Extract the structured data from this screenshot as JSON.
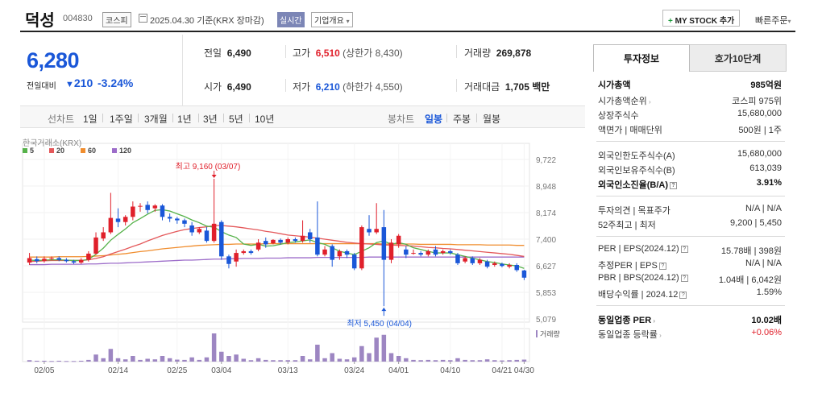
{
  "header": {
    "company": "덕성",
    "code": "004830",
    "market": "코스피",
    "date_info": "2025.04.30 기준(KRX 장마감)",
    "realtime": "실시간",
    "company_overview": "기업개요",
    "my_stock": "MY STOCK 추가",
    "my_stock_plus": "+",
    "quick_order": "빠른주문",
    "quick_order_arrow": "▾",
    "overview_arrow": "▾"
  },
  "price": {
    "current": "6,280",
    "prev_label": "전일대비",
    "change": "210",
    "change_pct": "-3.24%",
    "down_arrow": "▼"
  },
  "quote": {
    "prev_close_label": "전일",
    "prev_close": "6,490",
    "high_label": "고가",
    "high": "6,510",
    "upper_limit": "(상한가 8,430)",
    "volume_label": "거래량",
    "volume": "269,878",
    "open_label": "시가",
    "open": "6,490",
    "low_label": "저가",
    "low": "6,210",
    "lower_limit": "(하한가 4,550)",
    "amount_label": "거래대금",
    "amount": "1,705",
    "amount_unit": "백만"
  },
  "toolbar": {
    "line_label": "선차트",
    "line_periods": [
      "1일",
      "1주일",
      "3개월",
      "1년",
      "3년",
      "5년",
      "10년"
    ],
    "candle_label": "봉차트",
    "candle_periods": [
      "일봉",
      "주봉",
      "월봉"
    ],
    "active_candle": "일봉"
  },
  "chart_data": {
    "type": "candlestick",
    "source": "한국거래소(KRX)",
    "legend": [
      {
        "name": "5",
        "color": "#56b24a"
      },
      {
        "name": "20",
        "color": "#e4585a"
      },
      {
        "name": "60",
        "color": "#f08d2e"
      },
      {
        "name": "120",
        "color": "#9c6cc9"
      }
    ],
    "y_ticks": [
      "9,722",
      "8,948",
      "8,174",
      "7,400",
      "6,627",
      "5,853",
      "5,079"
    ],
    "ylim": [
      5079,
      9722
    ],
    "x_ticks": [
      "02/05",
      "02/14",
      "02/25",
      "03/04",
      "03/13",
      "03/24",
      "04/01",
      "04/10",
      "04/21",
      "04/30"
    ],
    "volume_label": "거래량",
    "annotation_high": "최고 9,160 (03/07)",
    "annotation_low": "최저 5,450 (04/04)",
    "candles": [
      {
        "o": 6720,
        "c": 6850,
        "h": 7000,
        "l": 6650
      },
      {
        "o": 6820,
        "c": 6760,
        "h": 6900,
        "l": 6700
      },
      {
        "o": 6770,
        "c": 6830,
        "h": 6900,
        "l": 6720
      },
      {
        "o": 6830,
        "c": 6850,
        "h": 6900,
        "l": 6790
      },
      {
        "o": 6850,
        "c": 6800,
        "h": 6900,
        "l": 6760
      },
      {
        "o": 6800,
        "c": 6760,
        "h": 6850,
        "l": 6720
      },
      {
        "o": 6760,
        "c": 6720,
        "h": 6800,
        "l": 6680
      },
      {
        "o": 6720,
        "c": 6800,
        "h": 6850,
        "l": 6680
      },
      {
        "o": 6800,
        "c": 6980,
        "h": 7050,
        "l": 6750
      },
      {
        "o": 6980,
        "c": 7450,
        "h": 7600,
        "l": 6950
      },
      {
        "o": 7420,
        "c": 7600,
        "h": 7750,
        "l": 7350
      },
      {
        "o": 7600,
        "c": 8020,
        "h": 8750,
        "l": 7550
      },
      {
        "o": 8000,
        "c": 7900,
        "h": 8300,
        "l": 7750
      },
      {
        "o": 7900,
        "c": 8050,
        "h": 8100,
        "l": 7800
      },
      {
        "o": 8050,
        "c": 8350,
        "h": 8500,
        "l": 7950
      },
      {
        "o": 8350,
        "c": 8370,
        "h": 8450,
        "l": 8200
      },
      {
        "o": 8400,
        "c": 8250,
        "h": 8500,
        "l": 8150
      },
      {
        "o": 8300,
        "c": 8380,
        "h": 8420,
        "l": 8200
      },
      {
        "o": 8380,
        "c": 8050,
        "h": 8420,
        "l": 7950
      },
      {
        "o": 8050,
        "c": 8000,
        "h": 8150,
        "l": 7900
      },
      {
        "o": 8000,
        "c": 7950,
        "h": 8050,
        "l": 7850
      },
      {
        "o": 7950,
        "c": 7850,
        "h": 8000,
        "l": 7750
      },
      {
        "o": 7800,
        "c": 7600,
        "h": 7900,
        "l": 7500
      },
      {
        "o": 7600,
        "c": 7700,
        "h": 7750,
        "l": 7550
      },
      {
        "o": 7650,
        "c": 7350,
        "h": 7750,
        "l": 7300
      },
      {
        "o": 7350,
        "c": 7850,
        "h": 9160,
        "l": 7300
      },
      {
        "o": 7900,
        "c": 6900,
        "h": 7950,
        "l": 6800
      },
      {
        "o": 6900,
        "c": 6680,
        "h": 6950,
        "l": 6550
      },
      {
        "o": 6750,
        "c": 7000,
        "h": 7100,
        "l": 6600
      },
      {
        "o": 7000,
        "c": 7050,
        "h": 7100,
        "l": 6950
      },
      {
        "o": 7050,
        "c": 7000,
        "h": 7100,
        "l": 6950
      },
      {
        "o": 7100,
        "c": 7300,
        "h": 7400,
        "l": 7050
      },
      {
        "o": 7350,
        "c": 7250,
        "h": 7450,
        "l": 7150
      },
      {
        "o": 7280,
        "c": 7380,
        "h": 7400,
        "l": 7250
      },
      {
        "o": 7380,
        "c": 7300,
        "h": 7420,
        "l": 7250
      },
      {
        "o": 7300,
        "c": 7400,
        "h": 7450,
        "l": 7250
      },
      {
        "o": 7400,
        "c": 7350,
        "h": 7450,
        "l": 7300
      },
      {
        "o": 7350,
        "c": 7500,
        "h": 7950,
        "l": 7300
      },
      {
        "o": 7600,
        "c": 7400,
        "h": 7700,
        "l": 7300
      },
      {
        "o": 7450,
        "c": 6950,
        "h": 8500,
        "l": 6900
      },
      {
        "o": 6950,
        "c": 7100,
        "h": 7200,
        "l": 6900
      },
      {
        "o": 7200,
        "c": 6800,
        "h": 7250,
        "l": 6600
      },
      {
        "o": 6900,
        "c": 7050,
        "h": 7100,
        "l": 6800
      },
      {
        "o": 7050,
        "c": 6950,
        "h": 7100,
        "l": 6850
      },
      {
        "o": 6950,
        "c": 6550,
        "h": 7000,
        "l": 6500
      },
      {
        "o": 6550,
        "c": 7750,
        "h": 7800,
        "l": 6500
      },
      {
        "o": 7700,
        "c": 7600,
        "h": 8100,
        "l": 7500
      },
      {
        "o": 7600,
        "c": 7700,
        "h": 8450,
        "l": 7550
      },
      {
        "o": 7750,
        "c": 6800,
        "h": 8250,
        "l": 5450
      },
      {
        "o": 6800,
        "c": 7300,
        "h": 7400,
        "l": 6700
      },
      {
        "o": 7250,
        "c": 7500,
        "h": 7550,
        "l": 7150
      },
      {
        "o": 7100,
        "c": 6950,
        "h": 7200,
        "l": 6850
      },
      {
        "o": 7000,
        "c": 7000,
        "h": 7100,
        "l": 6950
      },
      {
        "o": 7000,
        "c": 6950,
        "h": 7050,
        "l": 6900
      },
      {
        "o": 6950,
        "c": 7050,
        "h": 7100,
        "l": 6900
      },
      {
        "o": 7100,
        "c": 6950,
        "h": 7200,
        "l": 6900
      },
      {
        "o": 7000,
        "c": 7050,
        "h": 7100,
        "l": 6950
      },
      {
        "o": 7050,
        "c": 7000,
        "h": 7100,
        "l": 6950
      },
      {
        "o": 6950,
        "c": 6700,
        "h": 7000,
        "l": 6650
      },
      {
        "o": 6750,
        "c": 6850,
        "h": 6900,
        "l": 6700
      },
      {
        "o": 6850,
        "c": 6700,
        "h": 6900,
        "l": 6650
      },
      {
        "o": 6700,
        "c": 6800,
        "h": 6850,
        "l": 6650
      },
      {
        "o": 6750,
        "c": 6600,
        "h": 6800,
        "l": 6550
      },
      {
        "o": 6650,
        "c": 6700,
        "h": 6750,
        "l": 6600
      },
      {
        "o": 6680,
        "c": 6620,
        "h": 6720,
        "l": 6580
      },
      {
        "o": 6600,
        "c": 6650,
        "h": 6700,
        "l": 6550
      },
      {
        "o": 6650,
        "c": 6500,
        "h": 6700,
        "l": 6450
      },
      {
        "o": 6490,
        "c": 6280,
        "h": 6510,
        "l": 6210
      }
    ],
    "volumes": [
      0.05,
      0.03,
      0.03,
      0.02,
      0.03,
      0.02,
      0.02,
      0.03,
      0.06,
      0.25,
      0.12,
      0.45,
      0.12,
      0.08,
      0.2,
      0.06,
      0.1,
      0.08,
      0.2,
      0.12,
      0.07,
      0.06,
      0.15,
      0.06,
      0.15,
      1.0,
      0.35,
      0.2,
      0.25,
      0.1,
      0.05,
      0.12,
      0.06,
      0.05,
      0.05,
      0.05,
      0.05,
      0.2,
      0.08,
      0.6,
      0.12,
      0.3,
      0.1,
      0.08,
      0.15,
      0.55,
      0.3,
      0.85,
      0.95,
      0.3,
      0.2,
      0.12,
      0.06,
      0.05,
      0.06,
      0.05,
      0.06,
      0.05,
      0.12,
      0.06,
      0.05,
      0.05,
      0.08,
      0.05,
      0.04,
      0.05,
      0.06,
      0.07
    ],
    "ma5": [
      6790,
      6780,
      6790,
      6800,
      6800,
      6790,
      6780,
      6780,
      6810,
      6960,
      7140,
      7370,
      7540,
      7700,
      7880,
      8000,
      8130,
      8240,
      8260,
      8220,
      8140,
      8060,
      7960,
      7880,
      7780,
      7750,
      7620,
      7520,
      7450,
      7260,
      7220,
      7250,
      7200,
      7210,
      7250,
      7300,
      7320,
      7350,
      7380,
      7300,
      7250,
      7150,
      7050,
      7000,
      6950,
      7050,
      7150,
      7300,
      7350,
      7250,
      7300,
      7250,
      7150,
      7100,
      7050,
      7000,
      7000,
      7000,
      6950,
      6900,
      6850,
      6800,
      6750,
      6720,
      6680,
      6650,
      6620,
      6550
    ],
    "ma20": [
      6750,
      6760,
      6770,
      6780,
      6780,
      6780,
      6780,
      6780,
      6800,
      6840,
      6890,
      6970,
      7040,
      7110,
      7190,
      7260,
      7350,
      7430,
      7510,
      7570,
      7630,
      7680,
      7710,
      7740,
      7760,
      7800,
      7800,
      7780,
      7760,
      7730,
      7700,
      7670,
      7630,
      7600,
      7560,
      7520,
      7500,
      7480,
      7460,
      7430,
      7400,
      7370,
      7340,
      7310,
      7290,
      7270,
      7260,
      7250,
      7230,
      7230,
      7220,
      7210,
      7200,
      7180,
      7160,
      7150,
      7130,
      7120,
      7100,
      7080,
      7060,
      7040,
      7020,
      7000,
      6980,
      6960,
      6930,
      6900
    ],
    "ma60": [
      6880,
      6880,
      6880,
      6880,
      6890,
      6890,
      6890,
      6890,
      6900,
      6910,
      6920,
      6940,
      6960,
      6980,
      7010,
      7040,
      7060,
      7090,
      7120,
      7140,
      7160,
      7180,
      7200,
      7220,
      7230,
      7240,
      7250,
      7250,
      7260,
      7260,
      7260,
      7260,
      7270,
      7270,
      7270,
      7270,
      7270,
      7270,
      7270,
      7270,
      7270,
      7270,
      7270,
      7270,
      7270,
      7270,
      7270,
      7270,
      7260,
      7260,
      7260,
      7260,
      7260,
      7250,
      7250,
      7250,
      7250,
      7250,
      7240,
      7240,
      7240,
      7240,
      7230,
      7230,
      7230,
      7230,
      7220,
      7220
    ],
    "ma120": [
      6660,
      6660,
      6660,
      6670,
      6670,
      6670,
      6670,
      6670,
      6680,
      6680,
      6690,
      6700,
      6700,
      6710,
      6720,
      6730,
      6740,
      6750,
      6760,
      6770,
      6780,
      6790,
      6790,
      6800,
      6810,
      6820,
      6820,
      6830,
      6830,
      6840,
      6840,
      6840,
      6850,
      6850,
      6850,
      6860,
      6860,
      6860,
      6860,
      6870,
      6870,
      6870,
      6870,
      6870,
      6870,
      6870,
      6880,
      6880,
      6880,
      6880,
      6880,
      6880,
      6880,
      6880,
      6880,
      6880,
      6880,
      6880,
      6880,
      6880,
      6880,
      6880,
      6880,
      6880,
      6880,
      6880,
      6880,
      6880
    ]
  },
  "invest": {
    "tab_active": "투자정보",
    "tab_other": "호가10단계",
    "rows": [
      {
        "k": "시가총액",
        "v": "985억원",
        "bold": true
      },
      {
        "k": "시가총액순위",
        "v": "코스피 975위",
        "arrow": true
      },
      {
        "k": "상장주식수",
        "v": "15,680,000"
      },
      {
        "k": "액면가 | 매매단위",
        "v": "500원 | 1주"
      },
      {
        "k": "외국인한도주식수(A)",
        "v": "15,680,000"
      },
      {
        "k": "외국인보유주식수(B)",
        "v": "613,039"
      },
      {
        "k": "외국인소진율(B/A)",
        "v": "3.91%",
        "bold": true,
        "qm": true
      },
      {
        "k": "투자의견 | 목표주가",
        "v": "N/A | N/A"
      },
      {
        "k": "52주최고 | 최저",
        "v": "9,200 | 5,450"
      },
      {
        "k": "PER | EPS(2024.12)",
        "v": "15.78배 | 398원",
        "qm": true
      },
      {
        "k": "추정PER | EPS",
        "v": "N/A | N/A",
        "qm": true
      },
      {
        "k": "PBR | BPS(2024.12)",
        "v": "1.04배 | 6,042원",
        "qm": true
      },
      {
        "k": "배당수익률 | 2024.12",
        "v": "1.59%",
        "qm": true
      },
      {
        "k": "동일업종 PER",
        "v": "10.02배",
        "bold": true,
        "arrow": true
      },
      {
        "k": "동일업종 등락률",
        "v": "+0.06%",
        "arrow": true,
        "red": true
      }
    ]
  }
}
